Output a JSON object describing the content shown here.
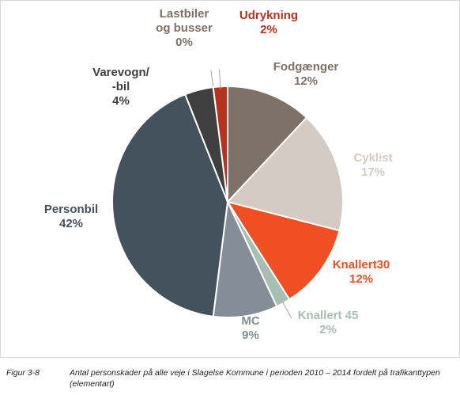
{
  "chart_data": {
    "type": "pie",
    "title": "",
    "start_angle_deg": 0,
    "direction": "clockwise",
    "categories": [
      "Fodgænger",
      "Cyklist",
      "Knallert30",
      "Knallert 45",
      "MC",
      "Personbil",
      "Varevogn/\n-bil",
      "Lastbiler\nog busser",
      "Udrykning"
    ],
    "values": [
      12,
      17,
      12,
      2,
      9,
      42,
      4,
      0,
      2
    ],
    "value_labels": [
      "12%",
      "17%",
      "12%",
      "2%",
      "9%",
      "42%",
      "4%",
      "0%",
      "2%"
    ],
    "colors": [
      "#7e7167",
      "#d4ccc4",
      "#f04e23",
      "#a7bfb3",
      "#848d98",
      "#44525d",
      "#3f3f3f",
      "#707070",
      "#b8311f"
    ],
    "label_colors": [
      "#7e7167",
      "#d4ccc4",
      "#f04e23",
      "#a7bfb3",
      "#848d98",
      "#44525d",
      "#3f3f3f",
      "#7e7167",
      "#b8311f"
    ],
    "label_names": [
      [
        "Fodgænger"
      ],
      [
        "Cyklist"
      ],
      [
        "Knallert30"
      ],
      [
        "Knallert 45"
      ],
      [
        "MC"
      ],
      [
        "Personbil"
      ],
      [
        "Varevogn/",
        "-bil"
      ],
      [
        "Lastbiler",
        "og busser"
      ],
      [
        "Udrykning"
      ]
    ]
  },
  "caption": {
    "figure": "Figur 3-8",
    "text": "Antal personskader på alle veje i Slagelse Kommune i perioden 2010 – 2014 fordelt på trafikanttypen (elementart)"
  }
}
